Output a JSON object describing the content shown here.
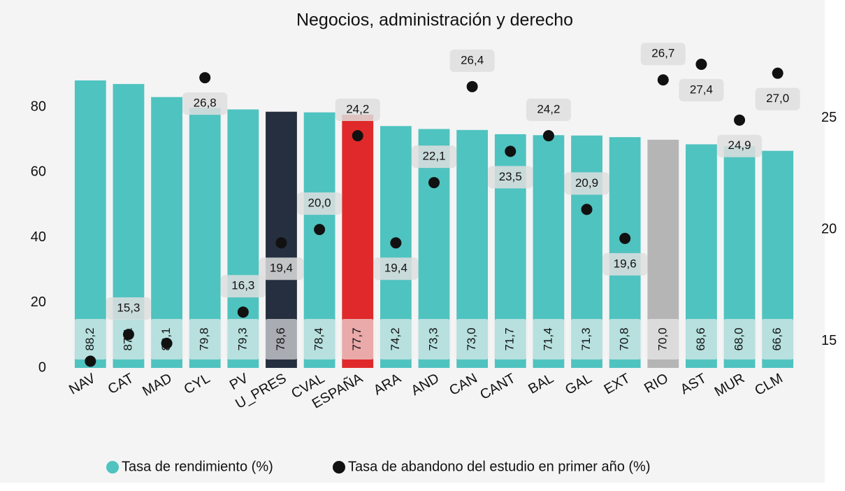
{
  "chart_data": {
    "type": "bar",
    "title": "Negocios, administración y derecho",
    "categories": [
      "NAV",
      "CAT",
      "MAD",
      "CYL",
      "PV",
      "U_PRES",
      "CVAL",
      "ESPAÑA",
      "ARA",
      "AND",
      "CAN",
      "CANT",
      "BAL",
      "GAL",
      "EXT",
      "RIO",
      "AST",
      "MUR",
      "CLM"
    ],
    "series": [
      {
        "name": "Tasa de rendimiento (%)",
        "color": "#4fc3c0",
        "colors": [
          "#4fc3c0",
          "#4fc3c0",
          "#4fc3c0",
          "#4fc3c0",
          "#4fc3c0",
          "#252f3f",
          "#4fc3c0",
          "#e0292a",
          "#4fc3c0",
          "#4fc3c0",
          "#4fc3c0",
          "#4fc3c0",
          "#4fc3c0",
          "#4fc3c0",
          "#4fc3c0",
          "#b5b5b5",
          "#4fc3c0",
          "#4fc3c0",
          "#4fc3c0"
        ],
        "values": [
          88.2,
          87.1,
          83.1,
          79.8,
          79.3,
          78.6,
          78.4,
          77.7,
          74.2,
          73.3,
          73.0,
          71.7,
          71.4,
          71.3,
          70.8,
          70.0,
          68.6,
          68.0,
          66.6
        ],
        "value_labels": [
          "88,2",
          "87,1",
          "83,1",
          "79,8",
          "79,3",
          "78,6",
          "78,4",
          "77,7",
          "74,2",
          "73,3",
          "73,0",
          "71,7",
          "71,4",
          "71,3",
          "70,8",
          "70,0",
          "68,6",
          "68,0",
          "66,6"
        ]
      },
      {
        "name": "Tasa de abandono del estudio en primer año (%)",
        "color": "#111111",
        "type": "scatter",
        "axis": "y2",
        "values": [
          14.1,
          15.3,
          14.9,
          26.8,
          16.3,
          19.4,
          20.0,
          24.2,
          19.4,
          22.1,
          26.4,
          23.5,
          24.2,
          20.9,
          19.6,
          26.7,
          27.4,
          24.9,
          27.0
        ],
        "value_labels": [
          null,
          "15,3",
          null,
          "26,8",
          "16,3",
          "19,4",
          "20,0",
          "24,2",
          "19,4",
          "22,1",
          "26,4",
          "23,5",
          "24,2",
          "20,9",
          "19,6",
          "26,7",
          "27,4",
          "24,9",
          "27,0"
        ]
      }
    ],
    "ylim": [
      0,
      100
    ],
    "yticks": [
      0,
      20,
      40,
      60,
      80
    ],
    "y2lim": [
      13.8,
      28.4
    ],
    "y2ticks": [
      15,
      20,
      25
    ],
    "grid": false,
    "legend": "bottom"
  }
}
